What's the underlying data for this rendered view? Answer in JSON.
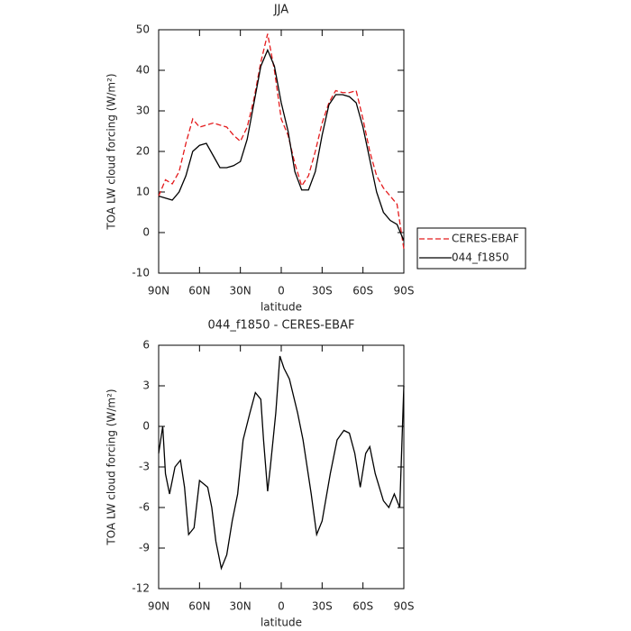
{
  "chart_data": [
    {
      "type": "line",
      "title": "JJA",
      "xlabel": "latitude",
      "ylabel": "TOA LW cloud forcing (W/m²)",
      "xlim": [
        90,
        -90
      ],
      "xticks": [
        {
          "value": 90,
          "label": "90N"
        },
        {
          "value": 60,
          "label": "60N"
        },
        {
          "value": 30,
          "label": "30N"
        },
        0,
        {
          "value": -30,
          "label": "30S"
        },
        {
          "value": -60,
          "label": "60S"
        },
        {
          "value": -90,
          "label": "90S"
        }
      ],
      "ylim": [
        -10,
        50
      ],
      "yticks": [
        -10,
        0,
        10,
        20,
        30,
        40,
        50
      ],
      "x": [
        90,
        85,
        80,
        75,
        70,
        65,
        60,
        55,
        50,
        45,
        40,
        35,
        30,
        25,
        20,
        15,
        10,
        5,
        0,
        -5,
        -10,
        -15,
        -20,
        -25,
        -30,
        -35,
        -40,
        -45,
        -50,
        -55,
        -60,
        -65,
        -70,
        -75,
        -80,
        -85,
        -90
      ],
      "legend": "outside-right",
      "series": [
        {
          "name": "CERES-EBAF",
          "color": "#e41a1c",
          "linestyle": "dashed",
          "values": [
            9,
            13,
            12,
            15,
            22,
            28,
            26,
            26.5,
            27,
            26.5,
            26,
            24,
            22.5,
            26,
            33,
            42,
            49,
            40,
            28,
            24,
            17,
            11.5,
            14,
            20,
            27,
            32,
            35,
            34.5,
            34.5,
            35,
            28,
            20,
            14,
            11,
            9,
            7,
            -4
          ]
        },
        {
          "name": "044_f1850",
          "color": "#000000",
          "linestyle": "solid",
          "values": [
            9,
            8.5,
            8,
            10,
            14,
            20,
            21.5,
            22,
            19,
            16,
            16,
            16.5,
            17.5,
            23,
            32,
            41,
            45,
            41,
            32,
            25,
            15,
            10.5,
            10.5,
            15,
            24,
            31.5,
            34,
            34,
            33.5,
            32,
            26,
            18,
            10,
            5,
            3,
            2,
            -2
          ]
        }
      ]
    },
    {
      "type": "line",
      "title": "044_f1850 - CERES-EBAF",
      "xlabel": "latitude",
      "ylabel": "TOA LW cloud forcing (W/m²)",
      "xlim": [
        90,
        -90
      ],
      "xticks": [
        {
          "value": 90,
          "label": "90N"
        },
        {
          "value": 60,
          "label": "60N"
        },
        {
          "value": 30,
          "label": "30N"
        },
        0,
        {
          "value": -30,
          "label": "30S"
        },
        {
          "value": -60,
          "label": "60S"
        },
        {
          "value": -90,
          "label": "90S"
        }
      ],
      "ylim": [
        -12,
        6
      ],
      "yticks": [
        -12,
        -9,
        -6,
        -3,
        0,
        3,
        6
      ],
      "x": [
        90,
        87,
        85,
        82,
        78,
        74,
        71,
        68,
        64,
        60,
        54,
        51,
        48,
        44,
        40,
        36,
        32,
        28,
        23,
        19,
        15,
        13,
        10,
        8,
        4,
        1,
        -2,
        -6,
        -12,
        -16,
        -22,
        -26,
        -30,
        -36,
        -41,
        -46,
        -50,
        -54,
        -58,
        -62,
        -65,
        -69,
        -75,
        -79,
        -83,
        -87,
        -89,
        -90
      ],
      "color": "#000000",
      "values": [
        -2,
        0,
        -3.5,
        -5,
        -3,
        -2.5,
        -4.5,
        -8,
        -7.5,
        -4,
        -4.5,
        -6,
        -8.5,
        -10.5,
        -9.5,
        -7,
        -5,
        -1,
        1,
        2.5,
        2,
        -1,
        -4.8,
        -3,
        1,
        5.2,
        4.3,
        3.5,
        1,
        -1,
        -5,
        -8,
        -7,
        -3.5,
        -1,
        -0.3,
        -0.5,
        -2,
        -4.5,
        -2,
        -1.5,
        -3.5,
        -5.5,
        -6,
        -5,
        -6,
        0,
        3
      ]
    }
  ]
}
